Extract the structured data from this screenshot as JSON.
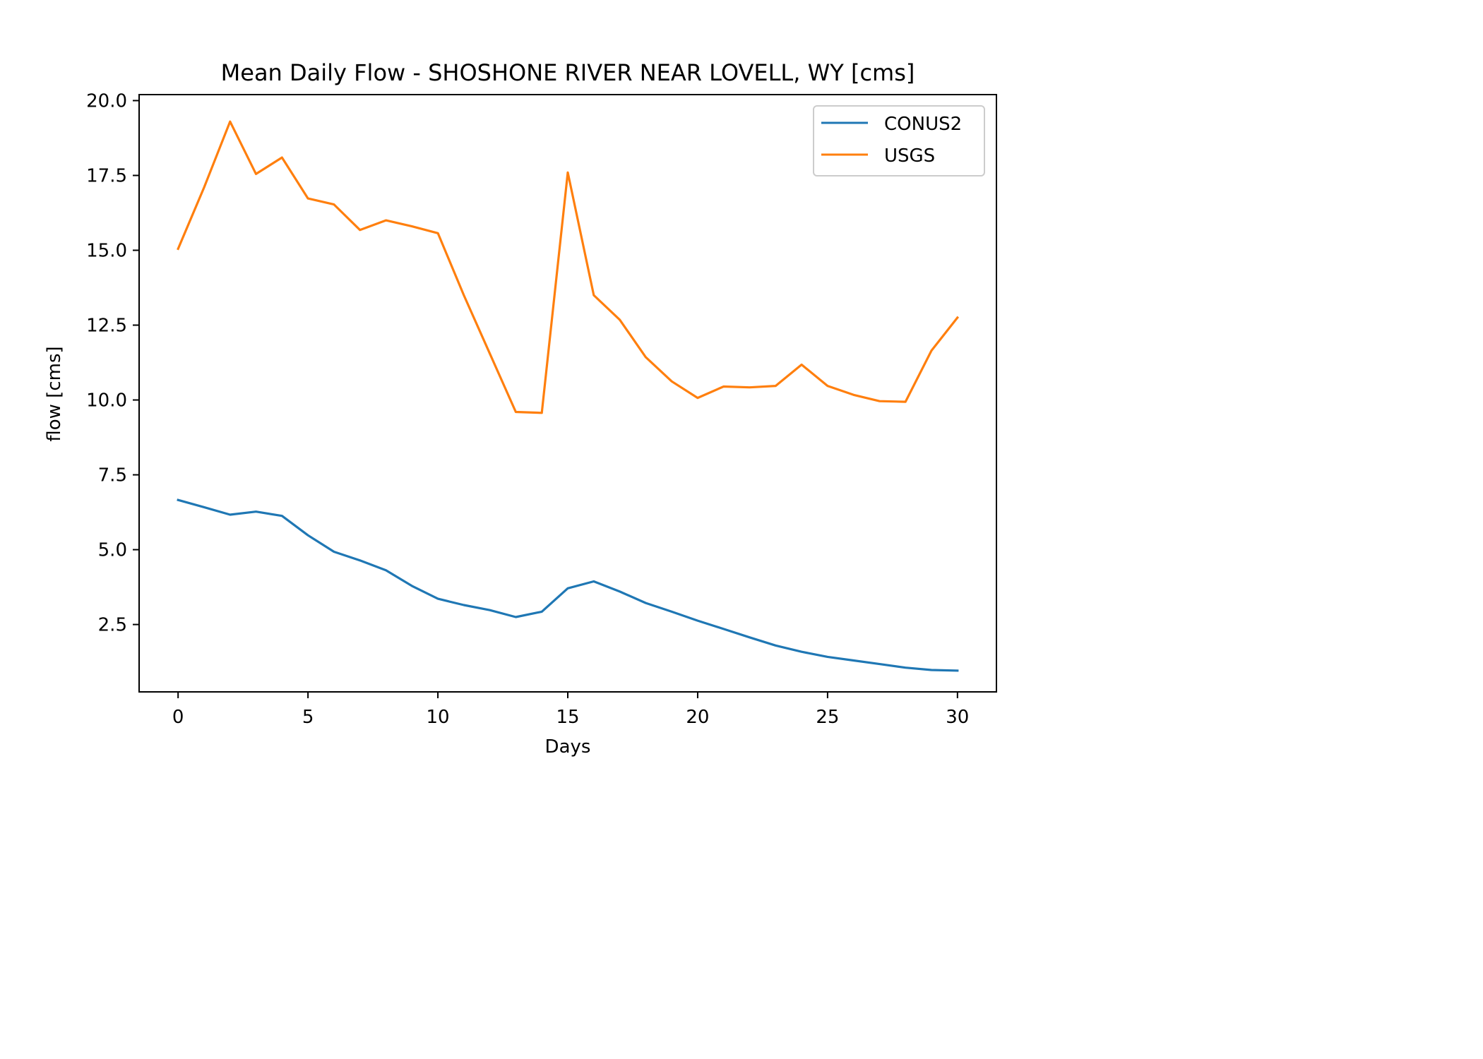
{
  "chart_data": {
    "type": "line",
    "title": "Mean Daily Flow - SHOSHONE RIVER NEAR LOVELL, WY [cms]",
    "xlabel": "Days",
    "ylabel": "flow [cms]",
    "xlim": [
      -1.5,
      31.5
    ],
    "ylim": [
      0.25,
      20.2
    ],
    "xticks": [
      0,
      5,
      10,
      15,
      20,
      25,
      30
    ],
    "xtick_labels": [
      "0",
      "5",
      "10",
      "15",
      "20",
      "25",
      "30"
    ],
    "yticks": [
      2.5,
      5.0,
      7.5,
      10.0,
      12.5,
      15.0,
      17.5,
      20.0
    ],
    "ytick_labels": [
      "2.5",
      "5.0",
      "7.5",
      "10.0",
      "12.5",
      "15.0",
      "17.5",
      "20.0"
    ],
    "grid": false,
    "legend_position": "upper right",
    "x": [
      0,
      1,
      2,
      3,
      4,
      5,
      6,
      7,
      8,
      9,
      10,
      11,
      12,
      13,
      14,
      15,
      16,
      17,
      18,
      19,
      20,
      21,
      22,
      23,
      24,
      25,
      26,
      27,
      28,
      29,
      30
    ],
    "series": [
      {
        "name": "CONUS2",
        "color": "#1f77b4",
        "values": [
          6.66,
          6.42,
          6.17,
          6.27,
          6.13,
          5.48,
          4.93,
          4.64,
          4.31,
          3.79,
          3.36,
          3.15,
          2.98,
          2.75,
          2.93,
          3.71,
          3.94,
          3.6,
          3.22,
          2.93,
          2.63,
          2.35,
          2.07,
          1.8,
          1.59,
          1.42,
          1.3,
          1.18,
          1.06,
          0.98,
          0.96
        ]
      },
      {
        "name": "USGS",
        "color": "#ff7f0e",
        "values": [
          15.05,
          17.1,
          19.3,
          17.55,
          18.1,
          16.73,
          16.53,
          15.68,
          16.0,
          15.8,
          15.57,
          13.5,
          11.55,
          9.6,
          9.57,
          17.6,
          13.5,
          12.68,
          11.43,
          10.62,
          10.07,
          10.45,
          10.42,
          10.47,
          11.18,
          10.47,
          10.17,
          9.96,
          9.94,
          11.65,
          12.75
        ]
      }
    ]
  }
}
